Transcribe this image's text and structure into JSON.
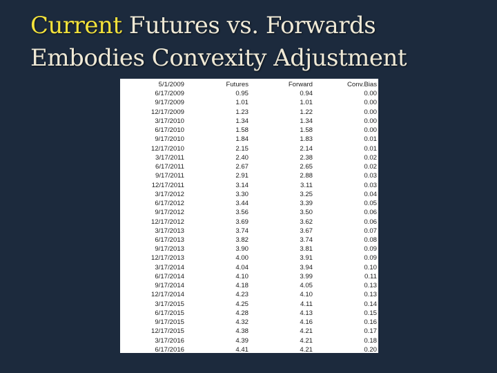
{
  "slide": {
    "title_highlight": "Current",
    "title_rest": "Futures vs. Forwards Embodies Convexity Adjustment"
  },
  "colors": {
    "background": "#1c2a3d",
    "title": "#efe9d6",
    "highlight": "#f3e23b",
    "table_bg": "#ffffff"
  },
  "table": {
    "header": [
      "5/1/2009",
      "Futures",
      "Forward",
      "Conv.Bias"
    ],
    "rows": [
      [
        "6/17/2009",
        "0.95",
        "0.94",
        "0.00"
      ],
      [
        "9/17/2009",
        "1.01",
        "1.01",
        "0.00"
      ],
      [
        "12/17/2009",
        "1.23",
        "1.22",
        "0.00"
      ],
      [
        "3/17/2010",
        "1.34",
        "1.34",
        "0.00"
      ],
      [
        "6/17/2010",
        "1.58",
        "1.58",
        "0.00"
      ],
      [
        "9/17/2010",
        "1.84",
        "1.83",
        "0.01"
      ],
      [
        "12/17/2010",
        "2.15",
        "2.14",
        "0.01"
      ],
      [
        "3/17/2011",
        "2.40",
        "2.38",
        "0.02"
      ],
      [
        "6/17/2011",
        "2.67",
        "2.65",
        "0.02"
      ],
      [
        "9/17/2011",
        "2.91",
        "2.88",
        "0.03"
      ],
      [
        "12/17/2011",
        "3.14",
        "3.11",
        "0.03"
      ],
      [
        "3/17/2012",
        "3.30",
        "3.25",
        "0.04"
      ],
      [
        "6/17/2012",
        "3.44",
        "3.39",
        "0.05"
      ],
      [
        "9/17/2012",
        "3.56",
        "3.50",
        "0.06"
      ],
      [
        "12/17/2012",
        "3.69",
        "3.62",
        "0.06"
      ],
      [
        "3/17/2013",
        "3.74",
        "3.67",
        "0.07"
      ],
      [
        "6/17/2013",
        "3.82",
        "3.74",
        "0.08"
      ],
      [
        "9/17/2013",
        "3.90",
        "3.81",
        "0.09"
      ],
      [
        "12/17/2013",
        "4.00",
        "3.91",
        "0.09"
      ],
      [
        "3/17/2014",
        "4.04",
        "3.94",
        "0.10"
      ],
      [
        "6/17/2014",
        "4.10",
        "3.99",
        "0.11"
      ],
      [
        "9/17/2014",
        "4.18",
        "4.05",
        "0.13"
      ],
      [
        "12/17/2014",
        "4.23",
        "4.10",
        "0.13"
      ],
      [
        "3/17/2015",
        "4.25",
        "4.11",
        "0.14"
      ],
      [
        "6/17/2015",
        "4.28",
        "4.13",
        "0.15"
      ],
      [
        "9/17/2015",
        "4.32",
        "4.16",
        "0.16"
      ],
      [
        "12/17/2015",
        "4.38",
        "4.21",
        "0.17"
      ],
      [
        "3/17/2016",
        "4.39",
        "4.21",
        "0.18"
      ],
      [
        "6/17/2016",
        "4.41",
        "4.21",
        "0.20"
      ]
    ]
  }
}
